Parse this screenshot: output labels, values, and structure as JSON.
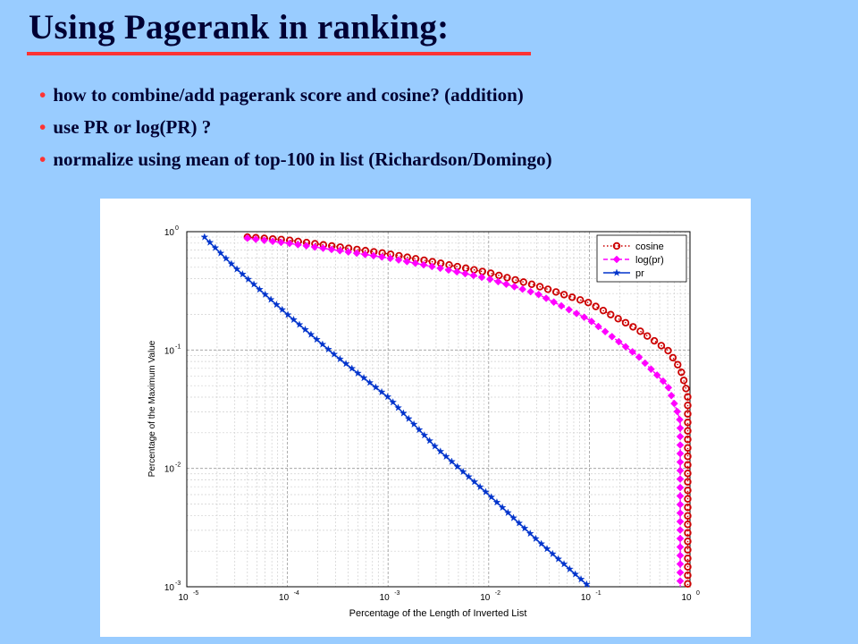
{
  "slide": {
    "title": "Using Pagerank in ranking:",
    "bullets": [
      "how to combine/add pagerank score and cosine? (addition)",
      "use PR or log(PR) ?",
      "normalize using mean of top-100 in list  (Richardson/Domingo)"
    ],
    "bullet_symbol": "•"
  },
  "colors": {
    "background": "#99ccff",
    "title": "#000033",
    "accent": "#ff3333"
  },
  "chart_data": {
    "type": "line",
    "xscale": "log",
    "yscale": "log",
    "xlim": [
      1e-05,
      1
    ],
    "ylim": [
      0.001,
      1
    ],
    "xlabel": "Percentage of the Length of Inverted List",
    "ylabel": "Percentage of the Maximum Value",
    "xticks": [
      1e-05,
      0.0001,
      0.001,
      0.01,
      0.1,
      1
    ],
    "yticks": [
      0.001,
      0.01,
      0.1,
      1
    ],
    "grid": true,
    "legend_position": "top-right",
    "series": [
      {
        "name": "cosine",
        "color": "#cc0000",
        "marker": "circle",
        "line": "dotted",
        "x": [
          4e-05,
          0.0001,
          0.0003,
          0.001,
          0.003,
          0.01,
          0.03,
          0.1,
          0.3,
          0.6,
          0.8,
          0.9,
          0.95,
          0.95,
          0.95,
          0.95
        ],
        "y": [
          0.9,
          0.85,
          0.75,
          0.65,
          0.55,
          0.45,
          0.35,
          0.25,
          0.15,
          0.1,
          0.07,
          0.05,
          0.04,
          0.01,
          0.003,
          0.001
        ]
      },
      {
        "name": "log(pr)",
        "color": "#ff00ff",
        "marker": "diamond",
        "line": "dashed",
        "x": [
          4e-05,
          0.0001,
          0.0003,
          0.001,
          0.003,
          0.01,
          0.03,
          0.1,
          0.3,
          0.6,
          0.75,
          0.8,
          0.8,
          0.8,
          0.8
        ],
        "y": [
          0.88,
          0.8,
          0.7,
          0.6,
          0.5,
          0.4,
          0.3,
          0.18,
          0.09,
          0.05,
          0.03,
          0.025,
          0.01,
          0.003,
          0.001
        ]
      },
      {
        "name": "pr",
        "color": "#0033cc",
        "marker": "star",
        "line": "solid",
        "x": [
          1.5e-05,
          3e-05,
          0.0001,
          0.0003,
          0.001,
          0.003,
          0.01,
          0.03,
          0.1
        ],
        "y": [
          0.9,
          0.5,
          0.2,
          0.09,
          0.04,
          0.015,
          0.006,
          0.0025,
          0.001
        ]
      }
    ]
  }
}
